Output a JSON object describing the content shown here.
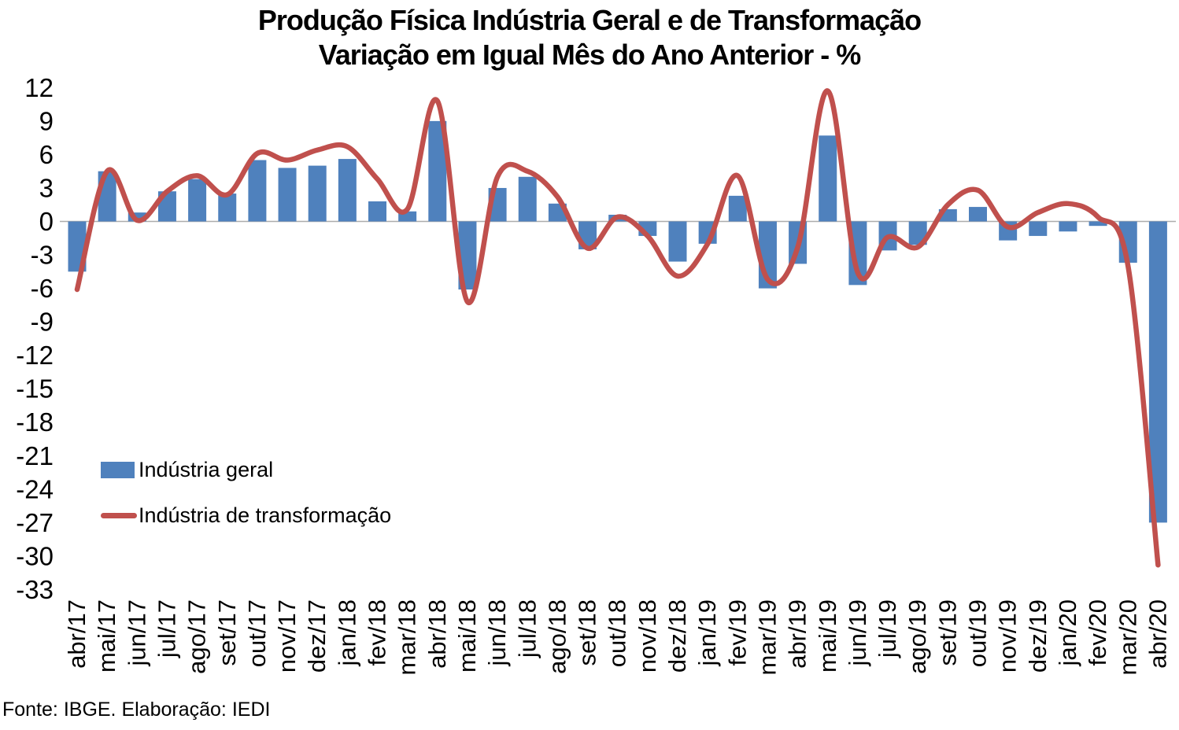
{
  "title": {
    "line1": "Produção Física Indústria Geral e de Transformação",
    "line2": "Variação em Igual Mês do Ano Anterior - %"
  },
  "legend": {
    "bar_label": "Indústria geral",
    "line_label": "Indústria de transformação"
  },
  "source_note": "Fonte: IBGE. Elaboração: IEDI",
  "colors": {
    "bar": "#4F81BD",
    "line": "#C0504D",
    "zero_axis": "#ACACAC",
    "text": "#000000"
  },
  "chart_data": {
    "type": "bar+line",
    "title": "Produção Física Indústria Geral e de Transformação — Variação em Igual Mês do Ano Anterior - %",
    "xlabel": "",
    "ylabel": "",
    "ylim": [
      -33,
      12
    ],
    "y_ticks": [
      12,
      9,
      6,
      3,
      0,
      -3,
      -6,
      -9,
      -12,
      -15,
      -18,
      -21,
      -24,
      -27,
      -30,
      -33
    ],
    "grid": "zero-line-only",
    "legend_position": "inside-left-middle",
    "categories": [
      "abr/17",
      "mai/17",
      "jun/17",
      "jul/17",
      "ago/17",
      "set/17",
      "out/17",
      "nov/17",
      "dez/17",
      "jan/18",
      "fev/18",
      "mar/18",
      "abr/18",
      "mai/18",
      "jun/18",
      "jul/18",
      "ago/18",
      "set/18",
      "out/18",
      "nov/18",
      "dez/18",
      "jan/19",
      "fev/19",
      "mar/19",
      "abr/19",
      "mai/19",
      "jun/19",
      "jul/19",
      "ago/19",
      "set/19",
      "out/19",
      "nov/19",
      "dez/19",
      "jan/20",
      "fev/20",
      "mar/20",
      "abr/20"
    ],
    "series": [
      {
        "name": "Indústria geral",
        "kind": "bar",
        "values": [
          -4.5,
          4.5,
          0.8,
          2.7,
          3.8,
          2.5,
          5.5,
          4.8,
          5.0,
          5.6,
          1.8,
          0.9,
          9.0,
          -6.1,
          3.0,
          4.0,
          1.6,
          -2.5,
          0.6,
          -1.3,
          -3.6,
          -2.0,
          2.3,
          -6.0,
          -3.8,
          7.7,
          -5.7,
          -2.6,
          -2.1,
          1.1,
          1.3,
          -1.7,
          -1.3,
          -0.9,
          -0.4,
          -3.7,
          -27.0
        ]
      },
      {
        "name": "Indústria de transformação",
        "kind": "line",
        "values": [
          -6.1,
          4.5,
          0.1,
          2.7,
          4.1,
          2.4,
          6.1,
          5.5,
          6.4,
          6.7,
          3.8,
          1.1,
          10.8,
          -7.2,
          4.0,
          4.5,
          2.2,
          -2.4,
          0.4,
          -1.3,
          -4.9,
          -2.0,
          4.1,
          -5.2,
          -2.3,
          11.7,
          -4.6,
          -1.4,
          -2.3,
          1.5,
          2.8,
          -0.5,
          0.8,
          1.6,
          0.4,
          -4.0,
          -30.8
        ]
      }
    ]
  }
}
